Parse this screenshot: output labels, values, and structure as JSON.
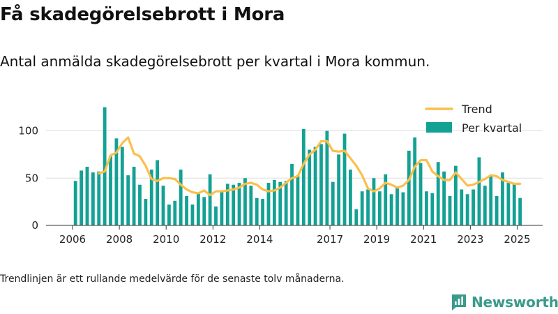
{
  "header": {
    "title": "Få skadegörelsebrott i Mora",
    "subtitle": "Antal anmälda skadegörelsebrott per kvartal i Mora kommun."
  },
  "footer": {
    "note": "Trendlinjen är ett rullande medelvärde för de senaste tolv månaderna.",
    "brand": "Newsworthy"
  },
  "icons": {
    "brand_logo": "newsworthy-logo-icon"
  },
  "colors": {
    "bars": "#13a194",
    "trend": "#fbbf4a",
    "brand": "#3a9a8c"
  },
  "chart_data": {
    "type": "bar",
    "title": "",
    "xlabel": "",
    "ylabel": "",
    "ylim": [
      0,
      125
    ],
    "y_ticks": [
      0,
      50,
      100
    ],
    "grid": true,
    "legend_position": "top-right",
    "x_start": 2006,
    "x_ticks": [
      2006,
      2008,
      2010,
      2012,
      2014,
      2017,
      2019,
      2021,
      2023,
      2025
    ],
    "series": [
      {
        "name": "Per kvartal",
        "type": "bar",
        "values": [
          47,
          58,
          62,
          56,
          57,
          125,
          73,
          92,
          83,
          53,
          62,
          43,
          28,
          59,
          69,
          42,
          22,
          26,
          59,
          31,
          22,
          34,
          30,
          54,
          20,
          37,
          44,
          43,
          45,
          50,
          42,
          29,
          28,
          45,
          48,
          46,
          47,
          65,
          53,
          102,
          80,
          83,
          86,
          100,
          46,
          75,
          97,
          59,
          17,
          36,
          38,
          50,
          36,
          54,
          33,
          41,
          35,
          79,
          93,
          66,
          36,
          34,
          67,
          57,
          31,
          63,
          38,
          33,
          38,
          72,
          42,
          52,
          31,
          56,
          45,
          44,
          29
        ]
      },
      {
        "name": "Trend",
        "type": "line",
        "start_index": 4,
        "values": [
          55,
          57,
          74,
          77,
          87,
          93,
          76,
          73,
          63,
          49,
          47,
          50,
          50,
          49,
          43,
          38,
          35,
          34,
          37,
          32,
          36,
          36,
          37,
          38,
          40,
          44,
          45,
          43,
          38,
          36,
          37,
          40,
          45,
          50,
          52,
          65,
          75,
          80,
          89,
          89,
          79,
          78,
          79,
          71,
          63,
          53,
          39,
          36,
          39,
          45,
          43,
          40,
          42,
          48,
          62,
          69,
          69,
          57,
          52,
          48,
          48,
          56,
          49,
          42,
          43,
          46,
          49,
          53,
          52,
          48,
          46,
          44,
          44
        ]
      }
    ]
  }
}
